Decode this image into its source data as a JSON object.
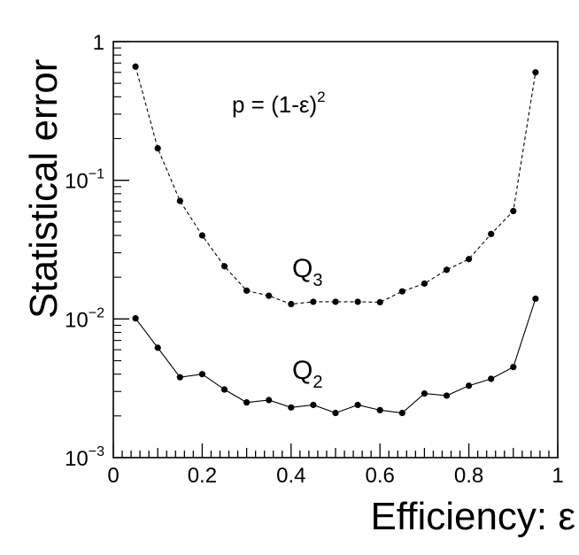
{
  "chart_data": {
    "type": "line",
    "title": "",
    "xlabel": "Efficiency: ε",
    "ylabel": "Statistical error",
    "xlim": [
      0,
      1
    ],
    "ylim": [
      0.001,
      1
    ],
    "yscale": "log",
    "grid": false,
    "x_ticks": [
      "0",
      "0.2",
      "0.4",
      "0.6",
      "0.8",
      "1"
    ],
    "y_ticks": [
      {
        "mantissa": "1",
        "exp": ""
      },
      {
        "mantissa": "10",
        "exp": "−1"
      },
      {
        "mantissa": "10",
        "exp": "−2"
      },
      {
        "mantissa": "10",
        "exp": "−3"
      }
    ],
    "annotation": {
      "text": "p = (1-ε)",
      "sup": "2"
    },
    "series": [
      {
        "name": "Q3",
        "label_main": "Q",
        "label_sub": "3",
        "style": "dashed",
        "x": [
          0.05,
          0.1,
          0.15,
          0.2,
          0.25,
          0.3,
          0.35,
          0.4,
          0.45,
          0.5,
          0.55,
          0.6,
          0.65,
          0.7,
          0.75,
          0.8,
          0.85,
          0.9,
          0.95
        ],
        "y": [
          0.66,
          0.17,
          0.071,
          0.04,
          0.024,
          0.016,
          0.0147,
          0.0128,
          0.0133,
          0.0133,
          0.0133,
          0.0132,
          0.0158,
          0.018,
          0.0226,
          0.027,
          0.041,
          0.06,
          0.6
        ]
      },
      {
        "name": "Q2",
        "label_main": "Q",
        "label_sub": "2",
        "style": "solid",
        "x": [
          0.05,
          0.1,
          0.15,
          0.2,
          0.25,
          0.3,
          0.35,
          0.4,
          0.45,
          0.5,
          0.55,
          0.6,
          0.65,
          0.7,
          0.75,
          0.8,
          0.85,
          0.9,
          0.95
        ],
        "y": [
          0.0101,
          0.0062,
          0.0038,
          0.004,
          0.0031,
          0.0025,
          0.0026,
          0.0023,
          0.0024,
          0.0021,
          0.0024,
          0.0022,
          0.0021,
          0.0029,
          0.0028,
          0.0033,
          0.0037,
          0.0045,
          0.014
        ]
      }
    ]
  }
}
